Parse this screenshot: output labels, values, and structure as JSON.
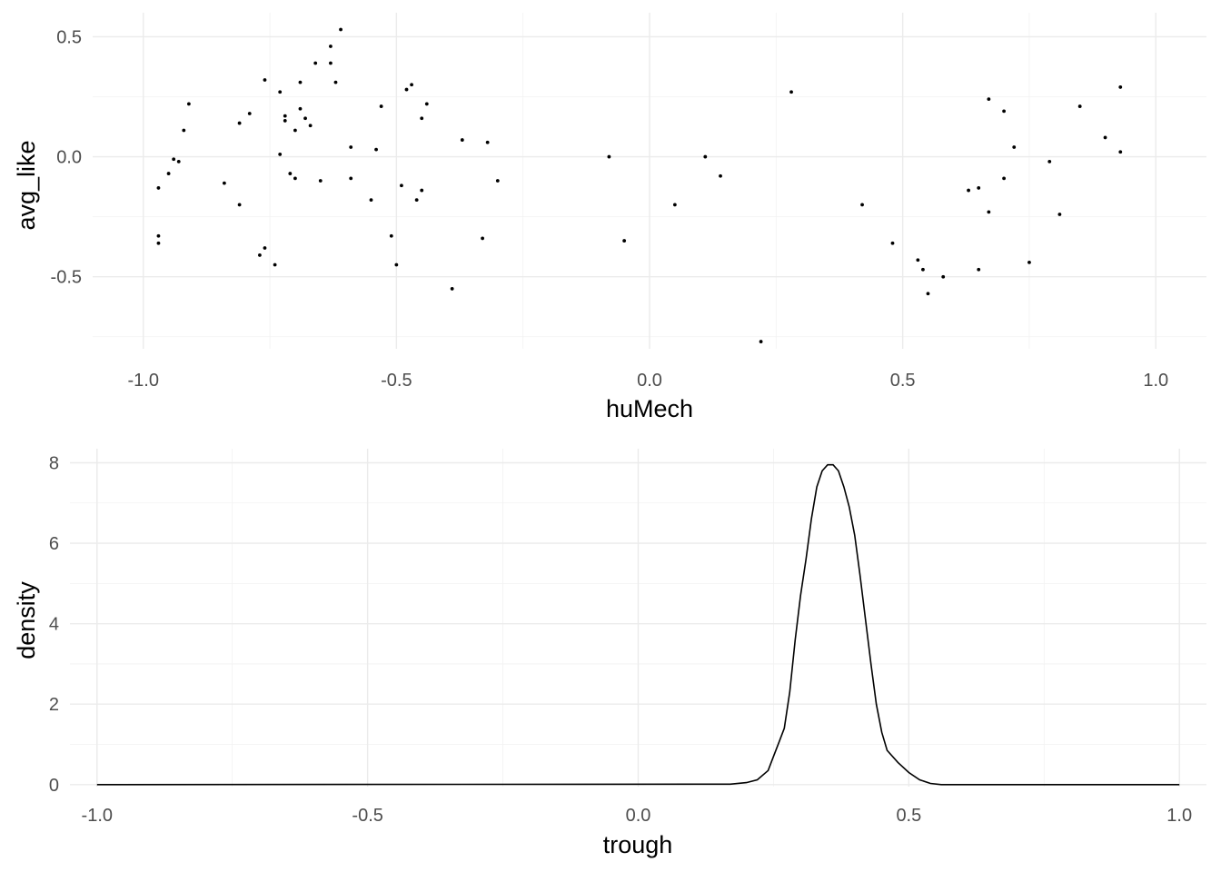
{
  "chart_data": [
    {
      "type": "scatter",
      "xlabel": "huMech",
      "ylabel": "avg_like",
      "xlim": [
        -1.1,
        1.1
      ],
      "ylim": [
        -0.8,
        0.6
      ],
      "x_ticks": [
        -1.0,
        -0.5,
        0.0,
        0.5,
        1.0
      ],
      "x_tick_labels": [
        "-1.0",
        "-0.5",
        "0.0",
        "0.5",
        "1.0"
      ],
      "y_ticks": [
        -0.5,
        0.0,
        0.5
      ],
      "y_tick_labels": [
        "-0.5",
        "0.0",
        "0.5"
      ],
      "grid": true,
      "points": [
        {
          "x": -0.97,
          "y": -0.13
        },
        {
          "x": -0.97,
          "y": -0.33
        },
        {
          "x": -0.97,
          "y": -0.36
        },
        {
          "x": -0.95,
          "y": -0.07
        },
        {
          "x": -0.94,
          "y": -0.01
        },
        {
          "x": -0.93,
          "y": -0.02
        },
        {
          "x": -0.92,
          "y": 0.11
        },
        {
          "x": -0.91,
          "y": 0.22
        },
        {
          "x": -0.84,
          "y": -0.11
        },
        {
          "x": -0.81,
          "y": -0.2
        },
        {
          "x": -0.81,
          "y": 0.14
        },
        {
          "x": -0.79,
          "y": 0.18
        },
        {
          "x": -0.77,
          "y": -0.41
        },
        {
          "x": -0.76,
          "y": -0.38
        },
        {
          "x": -0.76,
          "y": 0.32
        },
        {
          "x": -0.74,
          "y": -0.45
        },
        {
          "x": -0.73,
          "y": 0.27
        },
        {
          "x": -0.73,
          "y": 0.01
        },
        {
          "x": -0.72,
          "y": 0.17
        },
        {
          "x": -0.72,
          "y": 0.15
        },
        {
          "x": -0.71,
          "y": -0.07
        },
        {
          "x": -0.7,
          "y": 0.11
        },
        {
          "x": -0.7,
          "y": -0.09
        },
        {
          "x": -0.69,
          "y": 0.2
        },
        {
          "x": -0.69,
          "y": 0.31
        },
        {
          "x": -0.68,
          "y": 0.16
        },
        {
          "x": -0.67,
          "y": 0.13
        },
        {
          "x": -0.66,
          "y": 0.39
        },
        {
          "x": -0.65,
          "y": -0.1
        },
        {
          "x": -0.63,
          "y": 0.39
        },
        {
          "x": -0.63,
          "y": 0.46
        },
        {
          "x": -0.62,
          "y": 0.31
        },
        {
          "x": -0.61,
          "y": 0.53
        },
        {
          "x": -0.59,
          "y": -0.09
        },
        {
          "x": -0.59,
          "y": 0.04
        },
        {
          "x": -0.55,
          "y": -0.18
        },
        {
          "x": -0.54,
          "y": 0.03
        },
        {
          "x": -0.53,
          "y": 0.21
        },
        {
          "x": -0.51,
          "y": -0.33
        },
        {
          "x": -0.5,
          "y": -0.45
        },
        {
          "x": -0.49,
          "y": -0.12
        },
        {
          "x": -0.48,
          "y": 0.28
        },
        {
          "x": -0.47,
          "y": 0.3
        },
        {
          "x": -0.46,
          "y": -0.18
        },
        {
          "x": -0.45,
          "y": -0.14
        },
        {
          "x": -0.45,
          "y": 0.16
        },
        {
          "x": -0.44,
          "y": 0.22
        },
        {
          "x": -0.39,
          "y": -0.55
        },
        {
          "x": -0.37,
          "y": 0.07
        },
        {
          "x": -0.33,
          "y": -0.34
        },
        {
          "x": -0.32,
          "y": 0.06
        },
        {
          "x": -0.3,
          "y": -0.1
        },
        {
          "x": -0.08,
          "y": 0.0
        },
        {
          "x": -0.05,
          "y": -0.35
        },
        {
          "x": 0.05,
          "y": -0.2
        },
        {
          "x": 0.11,
          "y": 0.0
        },
        {
          "x": 0.14,
          "y": -0.08
        },
        {
          "x": 0.22,
          "y": -0.77
        },
        {
          "x": 0.28,
          "y": 0.27
        },
        {
          "x": 0.42,
          "y": -0.2
        },
        {
          "x": 0.48,
          "y": -0.36
        },
        {
          "x": 0.53,
          "y": -0.43
        },
        {
          "x": 0.54,
          "y": -0.47
        },
        {
          "x": 0.55,
          "y": -0.57
        },
        {
          "x": 0.58,
          "y": -0.5
        },
        {
          "x": 0.63,
          "y": -0.14
        },
        {
          "x": 0.65,
          "y": -0.47
        },
        {
          "x": 0.65,
          "y": -0.13
        },
        {
          "x": 0.67,
          "y": -0.23
        },
        {
          "x": 0.67,
          "y": 0.24
        },
        {
          "x": 0.7,
          "y": -0.09
        },
        {
          "x": 0.7,
          "y": 0.19
        },
        {
          "x": 0.72,
          "y": 0.04
        },
        {
          "x": 0.75,
          "y": -0.44
        },
        {
          "x": 0.79,
          "y": -0.02
        },
        {
          "x": 0.81,
          "y": -0.24
        },
        {
          "x": 0.85,
          "y": 0.21
        },
        {
          "x": 0.9,
          "y": 0.08
        },
        {
          "x": 0.93,
          "y": 0.29
        },
        {
          "x": 0.93,
          "y": 0.02
        }
      ]
    },
    {
      "type": "line",
      "xlabel": "trough",
      "ylabel": "density",
      "xlim": [
        -1.05,
        1.05
      ],
      "ylim": [
        -0.05,
        8.35
      ],
      "x_ticks": [
        -1.0,
        -0.5,
        0.0,
        0.5,
        1.0
      ],
      "x_tick_labels": [
        "-1.0",
        "-0.5",
        "0.0",
        "0.5",
        "1.0"
      ],
      "y_ticks": [
        0,
        2,
        4,
        6,
        8
      ],
      "y_tick_labels": [
        "0",
        "2",
        "4",
        "6",
        "8"
      ],
      "grid": true,
      "x": [
        -1.0,
        0.17,
        0.2,
        0.22,
        0.24,
        0.25,
        0.26,
        0.27,
        0.28,
        0.29,
        0.3,
        0.31,
        0.32,
        0.33,
        0.34,
        0.35,
        0.36,
        0.37,
        0.38,
        0.39,
        0.4,
        0.41,
        0.42,
        0.43,
        0.44,
        0.45,
        0.46,
        0.48,
        0.5,
        0.52,
        0.54,
        0.56,
        1.0
      ],
      "y": [
        0.0,
        0.01,
        0.05,
        0.12,
        0.35,
        0.7,
        1.05,
        1.4,
        2.3,
        3.6,
        4.7,
        5.6,
        6.6,
        7.4,
        7.8,
        7.95,
        7.95,
        7.8,
        7.4,
        6.9,
        6.2,
        5.2,
        4.1,
        3.0,
        2.0,
        1.3,
        0.85,
        0.55,
        0.3,
        0.12,
        0.03,
        0.0,
        0.0
      ]
    }
  ]
}
